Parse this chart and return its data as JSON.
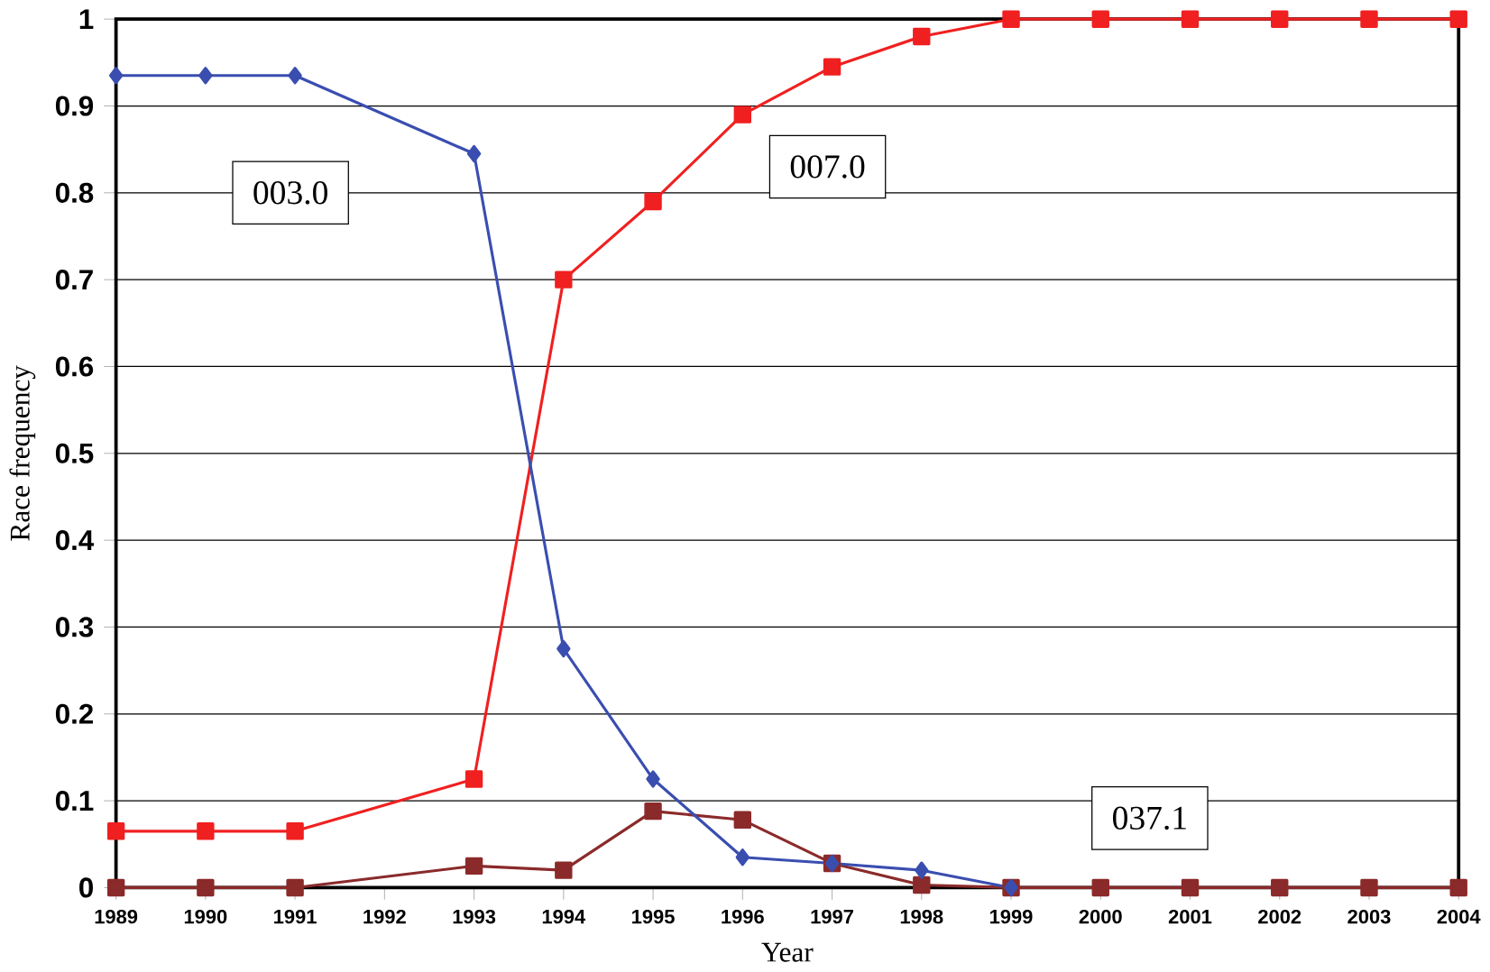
{
  "chart_data": {
    "type": "line",
    "xlabel": "Year",
    "ylabel": "Race frequency",
    "xlim": [
      1989,
      2004
    ],
    "xticks": [
      1989,
      1990,
      1991,
      1992,
      1993,
      1994,
      1995,
      1996,
      1997,
      1998,
      1999,
      2000,
      2001,
      2002,
      2003,
      2004
    ],
    "ylim": [
      0,
      1
    ],
    "yticks": [
      0,
      0.1,
      0.2,
      0.3,
      0.4,
      0.5,
      0.6,
      0.7,
      0.8,
      0.9,
      1
    ],
    "grid": "y",
    "legend": false,
    "series": [
      {
        "name": "003.0",
        "color": "#3a4eb0",
        "marker": "diamond",
        "x": [
          1989,
          1990,
          1991,
          1993,
          1994,
          1995,
          1996,
          1997,
          1998,
          1999
        ],
        "values": [
          0.935,
          0.935,
          0.935,
          0.845,
          0.275,
          0.125,
          0.035,
          0.028,
          0.02,
          0
        ]
      },
      {
        "name": "007.0",
        "color": "#f02020",
        "marker": "square",
        "x": [
          1989,
          1990,
          1991,
          1993,
          1994,
          1995,
          1996,
          1997,
          1998,
          1999,
          2000,
          2001,
          2002,
          2003,
          2004
        ],
        "values": [
          0.065,
          0.065,
          0.065,
          0.125,
          0.7,
          0.79,
          0.89,
          0.945,
          0.98,
          1,
          1,
          1,
          1,
          1,
          1
        ]
      },
      {
        "name": "037.1",
        "color": "#8b2a2a",
        "marker": "square",
        "x": [
          1989,
          1990,
          1991,
          1993,
          1994,
          1995,
          1996,
          1997,
          1998,
          1999,
          2000,
          2001,
          2002,
          2003,
          2004
        ],
        "values": [
          0,
          0,
          0,
          0.025,
          0.02,
          0.088,
          0.078,
          0.028,
          0.003,
          0,
          0,
          0,
          0,
          0,
          0
        ]
      }
    ]
  }
}
